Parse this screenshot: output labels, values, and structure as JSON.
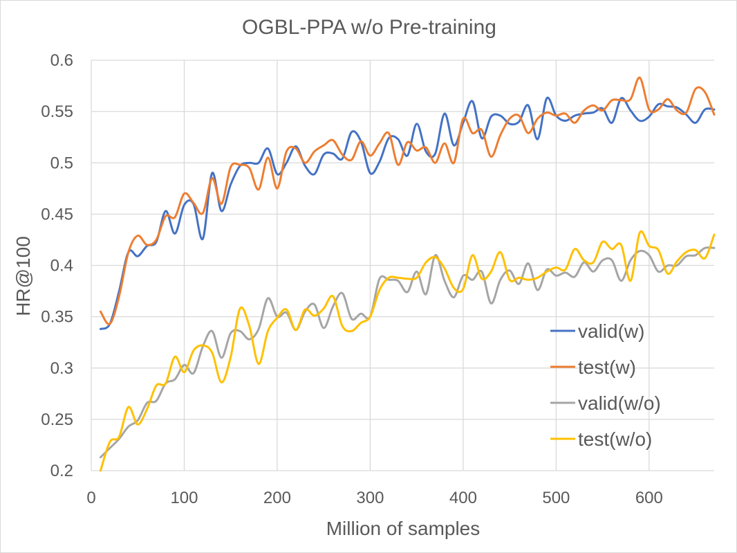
{
  "chart_data": {
    "type": "line",
    "title": "OGBL-PPA w/o Pre-training",
    "xlabel": "Million of samples",
    "ylabel": "HR@100",
    "xlim": [
      0,
      670
    ],
    "ylim": [
      0.2,
      0.6
    ],
    "x_ticks": [
      "0",
      "100",
      "200",
      "300",
      "400",
      "500",
      "600"
    ],
    "y_ticks": [
      "0.2",
      "0.25",
      "0.3",
      "0.35",
      "0.4",
      "0.45",
      "0.5",
      "0.55",
      "0.6"
    ],
    "grid": "vertical and horizontal major gridlines",
    "legend_position": "right",
    "x": [
      10,
      20,
      30,
      40,
      50,
      60,
      70,
      80,
      90,
      100,
      110,
      120,
      130,
      140,
      150,
      160,
      170,
      180,
      190,
      200,
      210,
      220,
      230,
      240,
      250,
      260,
      270,
      280,
      290,
      300,
      310,
      320,
      330,
      340,
      350,
      360,
      370,
      380,
      390,
      400,
      410,
      420,
      430,
      440,
      450,
      460,
      470,
      480,
      490,
      500,
      510,
      520,
      530,
      540,
      550,
      560,
      570,
      580,
      590,
      600,
      610,
      620,
      630,
      640,
      650,
      660,
      670
    ],
    "series": [
      {
        "name": "valid(w)",
        "color": "#4472C4",
        "values": [
          0.338,
          0.343,
          0.375,
          0.413,
          0.409,
          0.419,
          0.423,
          0.453,
          0.431,
          0.459,
          0.46,
          0.426,
          0.49,
          0.453,
          0.479,
          0.497,
          0.5,
          0.5,
          0.514,
          0.489,
          0.5,
          0.516,
          0.497,
          0.489,
          0.508,
          0.509,
          0.504,
          0.53,
          0.521,
          0.49,
          0.501,
          0.524,
          0.523,
          0.507,
          0.538,
          0.511,
          0.509,
          0.548,
          0.517,
          0.539,
          0.56,
          0.524,
          0.545,
          0.546,
          0.538,
          0.54,
          0.556,
          0.523,
          0.563,
          0.546,
          0.541,
          0.546,
          0.548,
          0.549,
          0.553,
          0.539,
          0.563,
          0.551,
          0.541,
          0.545,
          0.557,
          0.555,
          0.554,
          0.547,
          0.539,
          0.552,
          0.552
        ]
      },
      {
        "name": "test(w)",
        "color": "#ED7D31",
        "values": [
          0.355,
          0.343,
          0.37,
          0.413,
          0.429,
          0.42,
          0.425,
          0.448,
          0.447,
          0.47,
          0.461,
          0.451,
          0.485,
          0.46,
          0.496,
          0.498,
          0.495,
          0.474,
          0.505,
          0.475,
          0.511,
          0.514,
          0.5,
          0.511,
          0.517,
          0.522,
          0.508,
          0.503,
          0.521,
          0.507,
          0.519,
          0.529,
          0.498,
          0.52,
          0.512,
          0.515,
          0.5,
          0.519,
          0.5,
          0.543,
          0.529,
          0.532,
          0.506,
          0.527,
          0.543,
          0.546,
          0.529,
          0.543,
          0.549,
          0.546,
          0.548,
          0.539,
          0.551,
          0.556,
          0.551,
          0.561,
          0.561,
          0.562,
          0.583,
          0.552,
          0.552,
          0.562,
          0.551,
          0.549,
          0.572,
          0.569,
          0.547
        ]
      },
      {
        "name": "valid(w/o)",
        "color": "#A5A5A5",
        "values": [
          0.213,
          0.222,
          0.231,
          0.243,
          0.249,
          0.266,
          0.268,
          0.285,
          0.289,
          0.303,
          0.295,
          0.321,
          0.336,
          0.31,
          0.334,
          0.336,
          0.328,
          0.338,
          0.368,
          0.35,
          0.354,
          0.337,
          0.355,
          0.362,
          0.339,
          0.36,
          0.373,
          0.348,
          0.353,
          0.35,
          0.387,
          0.386,
          0.385,
          0.374,
          0.394,
          0.372,
          0.41,
          0.385,
          0.369,
          0.39,
          0.386,
          0.394,
          0.363,
          0.386,
          0.395,
          0.382,
          0.402,
          0.376,
          0.396,
          0.39,
          0.393,
          0.389,
          0.403,
          0.394,
          0.405,
          0.405,
          0.385,
          0.405,
          0.414,
          0.41,
          0.394,
          0.4,
          0.4,
          0.409,
          0.41,
          0.417,
          0.417
        ]
      },
      {
        "name": "test(w/o)",
        "color": "#FFC000",
        "values": [
          0.2,
          0.228,
          0.233,
          0.262,
          0.245,
          0.26,
          0.283,
          0.285,
          0.311,
          0.296,
          0.317,
          0.322,
          0.315,
          0.286,
          0.311,
          0.358,
          0.341,
          0.304,
          0.336,
          0.349,
          0.357,
          0.337,
          0.357,
          0.351,
          0.358,
          0.37,
          0.341,
          0.336,
          0.344,
          0.35,
          0.376,
          0.388,
          0.388,
          0.387,
          0.388,
          0.403,
          0.408,
          0.397,
          0.378,
          0.377,
          0.41,
          0.387,
          0.394,
          0.413,
          0.386,
          0.388,
          0.386,
          0.388,
          0.394,
          0.398,
          0.396,
          0.416,
          0.405,
          0.403,
          0.423,
          0.416,
          0.42,
          0.385,
          0.432,
          0.419,
          0.415,
          0.392,
          0.404,
          0.413,
          0.415,
          0.407,
          0.43
        ]
      }
    ]
  }
}
